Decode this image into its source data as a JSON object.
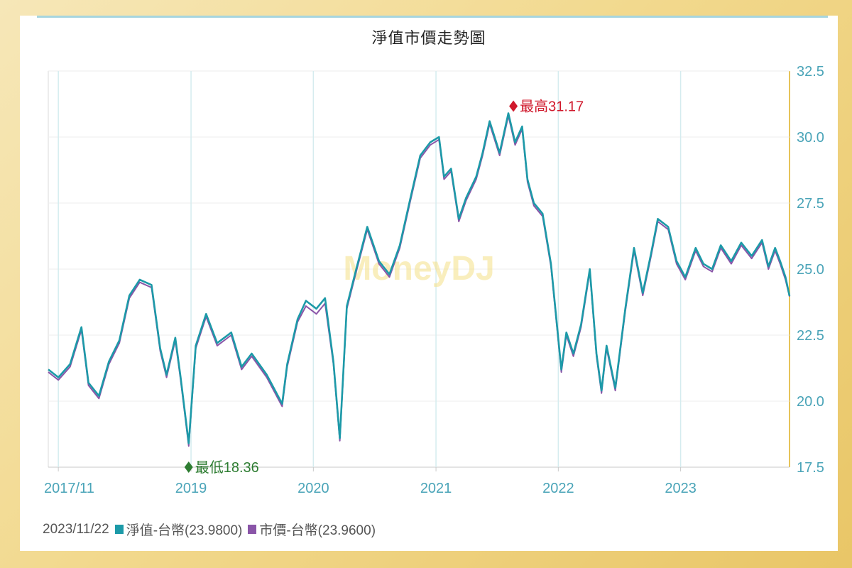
{
  "chart_data": {
    "type": "line",
    "title": "淨值市價走勢圖",
    "watermark": "MoneyDJ",
    "x_ticks": [
      "2017/11",
      "2019",
      "2020",
      "2021",
      "2022",
      "2023"
    ],
    "y_ticks": [
      "17.5",
      "20.0",
      "22.5",
      "25.0",
      "27.5",
      "30.0",
      "32.5"
    ],
    "ylim": [
      17.5,
      32.5
    ],
    "xlim": [
      "2017-11-01",
      "2023-11-22"
    ],
    "grid": true,
    "y_axis_side": "right",
    "series": [
      {
        "name": "淨值-台幣",
        "color": "#1c9aa8",
        "x": [
          "2017-11-01",
          "2017-12-01",
          "2018-01-05",
          "2018-02-08",
          "2018-03-01",
          "2018-04-01",
          "2018-05-01",
          "2018-06-01",
          "2018-07-01",
          "2018-08-01",
          "2018-09-05",
          "2018-10-01",
          "2018-10-20",
          "2018-11-15",
          "2018-12-01",
          "2018-12-25",
          "2019-01-15",
          "2019-02-15",
          "2019-03-20",
          "2019-05-01",
          "2019-06-01",
          "2019-07-01",
          "2019-08-15",
          "2019-09-30",
          "2019-10-15",
          "2019-11-15",
          "2019-12-10",
          "2020-01-10",
          "2020-02-05",
          "2020-03-01",
          "2020-03-20",
          "2020-04-10",
          "2020-05-10",
          "2020-06-10",
          "2020-07-15",
          "2020-08-15",
          "2020-09-15",
          "2020-10-15",
          "2020-11-15",
          "2020-12-15",
          "2021-01-10",
          "2021-01-25",
          "2021-02-15",
          "2021-03-10",
          "2021-04-01",
          "2021-05-01",
          "2021-05-20",
          "2021-06-10",
          "2021-07-10",
          "2021-08-05",
          "2021-08-25",
          "2021-09-15",
          "2021-10-01",
          "2021-10-20",
          "2021-11-15",
          "2021-12-10",
          "2022-01-10",
          "2022-01-25",
          "2022-02-15",
          "2022-03-10",
          "2022-04-05",
          "2022-04-25",
          "2022-05-10",
          "2022-05-25",
          "2022-06-20",
          "2022-07-20",
          "2022-08-15",
          "2022-09-10",
          "2022-10-05",
          "2022-10-25",
          "2022-11-25",
          "2022-12-20",
          "2023-01-15",
          "2023-02-15",
          "2023-03-10",
          "2023-04-05",
          "2023-05-01",
          "2023-06-01",
          "2023-07-01",
          "2023-08-01",
          "2023-09-01",
          "2023-09-20",
          "2023-10-10",
          "2023-10-25",
          "2023-11-10",
          "2023-11-22"
        ],
        "values": [
          21.2,
          20.9,
          21.4,
          22.8,
          20.7,
          20.2,
          21.5,
          22.3,
          24.0,
          24.6,
          24.4,
          22.0,
          21.0,
          22.4,
          20.9,
          18.4,
          22.1,
          23.3,
          22.2,
          22.6,
          21.3,
          21.8,
          21.0,
          19.9,
          21.4,
          23.1,
          23.8,
          23.5,
          23.9,
          21.5,
          18.6,
          23.6,
          25.1,
          26.6,
          25.3,
          24.8,
          25.9,
          27.6,
          29.3,
          29.8,
          30.0,
          28.5,
          28.8,
          26.9,
          27.7,
          28.5,
          29.4,
          30.6,
          29.4,
          30.9,
          29.8,
          30.4,
          28.4,
          27.5,
          27.1,
          25.2,
          21.2,
          22.6,
          21.8,
          22.9,
          25.0,
          21.8,
          20.4,
          22.1,
          20.5,
          23.5,
          25.8,
          24.1,
          25.6,
          26.9,
          26.6,
          25.3,
          24.7,
          25.8,
          25.2,
          25.0,
          25.9,
          25.3,
          26.0,
          25.5,
          26.1,
          25.1,
          25.8,
          25.3,
          24.7,
          23.98
        ]
      },
      {
        "name": "市價-台幣",
        "color": "#8a55a8",
        "x": [
          "2017-11-01",
          "2017-12-01",
          "2018-01-05",
          "2018-02-08",
          "2018-03-01",
          "2018-04-01",
          "2018-05-01",
          "2018-06-01",
          "2018-07-01",
          "2018-08-01",
          "2018-09-05",
          "2018-10-01",
          "2018-10-20",
          "2018-11-15",
          "2018-12-01",
          "2018-12-25",
          "2019-01-15",
          "2019-02-15",
          "2019-03-20",
          "2019-05-01",
          "2019-06-01",
          "2019-07-01",
          "2019-08-15",
          "2019-09-30",
          "2019-10-15",
          "2019-11-15",
          "2019-12-10",
          "2020-01-10",
          "2020-02-05",
          "2020-03-01",
          "2020-03-20",
          "2020-04-10",
          "2020-05-10",
          "2020-06-10",
          "2020-07-15",
          "2020-08-15",
          "2020-09-15",
          "2020-10-15",
          "2020-11-15",
          "2020-12-15",
          "2021-01-10",
          "2021-01-25",
          "2021-02-15",
          "2021-03-10",
          "2021-04-01",
          "2021-05-01",
          "2021-05-20",
          "2021-06-10",
          "2021-07-10",
          "2021-08-05",
          "2021-08-25",
          "2021-09-15",
          "2021-10-01",
          "2021-10-20",
          "2021-11-15",
          "2021-12-10",
          "2022-01-10",
          "2022-01-25",
          "2022-02-15",
          "2022-03-10",
          "2022-04-05",
          "2022-04-25",
          "2022-05-10",
          "2022-05-25",
          "2022-06-20",
          "2022-07-20",
          "2022-08-15",
          "2022-09-10",
          "2022-10-05",
          "2022-10-25",
          "2022-11-25",
          "2022-12-20",
          "2023-01-15",
          "2023-02-15",
          "2023-03-10",
          "2023-04-05",
          "2023-05-01",
          "2023-06-01",
          "2023-07-01",
          "2023-08-01",
          "2023-09-01",
          "2023-09-20",
          "2023-10-10",
          "2023-10-25",
          "2023-11-10",
          "2023-11-22"
        ],
        "values": [
          21.1,
          20.8,
          21.3,
          22.7,
          20.6,
          20.1,
          21.4,
          22.2,
          23.9,
          24.5,
          24.3,
          21.9,
          20.9,
          22.3,
          20.8,
          18.3,
          22.0,
          23.2,
          22.1,
          22.5,
          21.2,
          21.7,
          20.9,
          19.8,
          21.3,
          23.0,
          23.6,
          23.3,
          23.7,
          21.4,
          18.5,
          23.5,
          25.0,
          26.5,
          25.2,
          24.7,
          25.8,
          27.5,
          29.2,
          29.7,
          29.9,
          28.4,
          28.7,
          26.8,
          27.6,
          28.4,
          29.3,
          30.5,
          29.3,
          30.8,
          29.7,
          30.3,
          28.3,
          27.4,
          27.0,
          25.1,
          21.1,
          22.5,
          21.7,
          22.8,
          24.9,
          21.7,
          20.3,
          22.0,
          20.4,
          23.4,
          25.7,
          24.0,
          25.5,
          26.8,
          26.5,
          25.2,
          24.6,
          25.7,
          25.1,
          24.9,
          25.8,
          25.2,
          25.9,
          25.4,
          26.0,
          25.0,
          25.7,
          25.2,
          24.6,
          23.96
        ]
      }
    ],
    "annotations": [
      {
        "text": "最高31.17",
        "date": "2021-08-20",
        "value": 31.17,
        "color": "#d0192c"
      },
      {
        "text": "最低18.36",
        "date": "2018-12-25",
        "value": 18.36,
        "color": "#2e7d32"
      }
    ],
    "legend": {
      "date": "2023/11/22",
      "items": [
        {
          "label": "淨值-台幣(23.9800)",
          "color": "#1c9aa8"
        },
        {
          "label": "市價-台幣(23.9600)",
          "color": "#8a55a8"
        }
      ]
    }
  }
}
